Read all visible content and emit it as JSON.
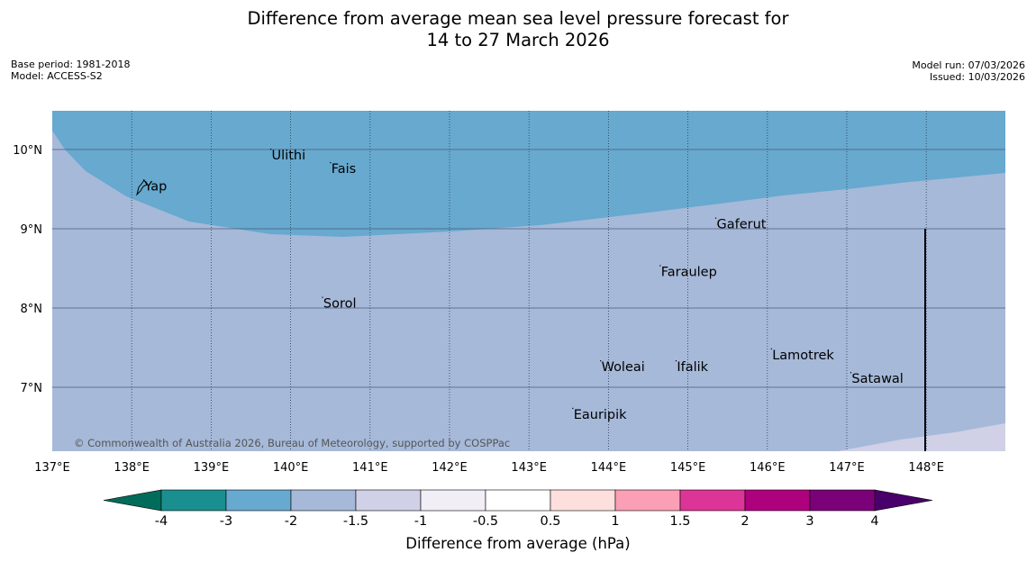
{
  "title_line1": "Difference from average mean sea level pressure forecast for",
  "title_line2": "14 to 27 March 2026",
  "base_period": "Base period: 1981-2018",
  "model": "Model: ACCESS-S2",
  "model_run": "Model run: 07/03/2026",
  "issued": "Issued: 10/03/2026",
  "copyright": "© Commonwealth of Australia 2026, Bureau of Meteorology, supported by COSPPac",
  "map": {
    "lon_range": [
      137,
      149
    ],
    "lat_range": [
      6.2,
      10.5
    ],
    "lon_ticks": [
      {
        "value": 137,
        "label": "137°E"
      },
      {
        "value": 138,
        "label": "138°E"
      },
      {
        "value": 139,
        "label": "139°E"
      },
      {
        "value": 140,
        "label": "140°E"
      },
      {
        "value": 141,
        "label": "141°E"
      },
      {
        "value": 142,
        "label": "142°E"
      },
      {
        "value": 143,
        "label": "143°E"
      },
      {
        "value": 144,
        "label": "144°E"
      },
      {
        "value": 145,
        "label": "145°E"
      },
      {
        "value": 146,
        "label": "146°E"
      },
      {
        "value": 147,
        "label": "147°E"
      },
      {
        "value": 148,
        "label": "148°E"
      }
    ],
    "lat_ticks": [
      {
        "value": 10,
        "label": "10°N"
      },
      {
        "value": 9,
        "label": "9°N"
      },
      {
        "value": 8,
        "label": "8°N"
      },
      {
        "value": 7,
        "label": "7°N"
      }
    ],
    "places": [
      {
        "name": "Ulithi",
        "lon": 139.75,
        "lat": 9.92
      },
      {
        "name": "Fais",
        "lon": 140.5,
        "lat": 9.75
      },
      {
        "name": "Yap",
        "lon": 138.15,
        "lat": 9.53
      },
      {
        "name": "Gaferut",
        "lon": 145.35,
        "lat": 9.05
      },
      {
        "name": "Faraulep",
        "lon": 144.65,
        "lat": 8.45
      },
      {
        "name": "Sorol",
        "lon": 140.4,
        "lat": 8.05
      },
      {
        "name": "Lamotrek",
        "lon": 146.05,
        "lat": 7.4
      },
      {
        "name": "Woleai",
        "lon": 143.9,
        "lat": 7.25
      },
      {
        "name": "Ifalik",
        "lon": 144.85,
        "lat": 7.25
      },
      {
        "name": "Satawal",
        "lon": 147.05,
        "lat": 7.1
      },
      {
        "name": "Eauripik",
        "lon": 143.55,
        "lat": 6.65
      }
    ]
  },
  "colorbar": {
    "title": "Difference from average (hPa)",
    "bins": [
      {
        "color": "#1a8f8f",
        "lo": -4,
        "hi": -3
      },
      {
        "color": "#67a9cf",
        "lo": -3,
        "hi": -2
      },
      {
        "color": "#a6b9d9",
        "lo": -2,
        "hi": -1.5
      },
      {
        "color": "#d0d1e6",
        "lo": -1.5,
        "hi": -1
      },
      {
        "color": "#f1eef6",
        "lo": -1,
        "hi": -0.5
      },
      {
        "color": "#ffffff",
        "lo": -0.5,
        "hi": 0.5
      },
      {
        "color": "#fde0dd",
        "lo": 0.5,
        "hi": 1
      },
      {
        "color": "#fa9fb5",
        "lo": 1,
        "hi": 1.5
      },
      {
        "color": "#dd3497",
        "lo": 1.5,
        "hi": 2
      },
      {
        "color": "#ae017e",
        "lo": 2,
        "hi": 3
      },
      {
        "color": "#7a0177",
        "lo": 3,
        "hi": 4
      }
    ],
    "under_color": "#016c59",
    "over_color": "#49006a",
    "tick_labels": [
      "-4",
      "-3",
      "-2",
      "-1.5",
      "-1",
      "-0.5",
      "0.5",
      "1",
      "1.5",
      "2",
      "3",
      "4"
    ]
  },
  "fill_colors": {
    "band_m3_m2": "#67a9cf",
    "band_m2_m15": "#a6b9d9",
    "band_m15_m1": "#d0d1e6"
  }
}
